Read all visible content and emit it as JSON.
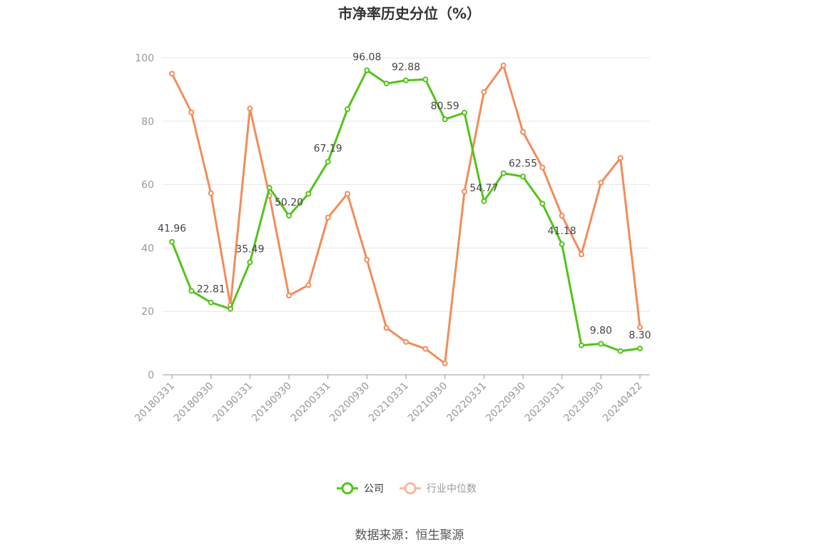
{
  "chart_data": {
    "type": "line",
    "title": "市净率历史分位（%）",
    "ylim": [
      0,
      100
    ],
    "yticks": [
      0,
      20,
      40,
      60,
      80,
      100
    ],
    "grid": true,
    "legend_position": "bottom",
    "x": [
      "20180331",
      "20180630",
      "20180930",
      "20181231",
      "20190331",
      "20190630",
      "20190930",
      "20191231",
      "20200331",
      "20200630",
      "20200930",
      "20201231",
      "20210331",
      "20210630",
      "20210930",
      "20211231",
      "20220331",
      "20220630",
      "20220930",
      "20221231",
      "20230331",
      "20230630",
      "20230930",
      "20231231",
      "20240422"
    ],
    "xtick_labels": [
      "20180331",
      "20180930",
      "20190331",
      "20190930",
      "20200331",
      "20200930",
      "20210331",
      "20210930",
      "20220331",
      "20220930",
      "20230331",
      "20230930",
      "20240422"
    ],
    "series": [
      {
        "name": "公司",
        "color": "#52c41a",
        "values": [
          41.96,
          26.5,
          22.81,
          20.8,
          35.49,
          59.0,
          50.2,
          57.1,
          67.19,
          83.8,
          96.08,
          91.9,
          92.88,
          93.2,
          80.59,
          82.7,
          54.77,
          63.6,
          62.55,
          54.0,
          41.18,
          9.3,
          9.8,
          7.5,
          8.3
        ],
        "labels": {
          "0": "41.96",
          "2": "22.81",
          "4": "35.49",
          "6": "50.20",
          "8": "67.19",
          "10": "96.08",
          "12": "92.88",
          "14": "80.59",
          "16": "54.77",
          "18": "62.55",
          "20": "41.18",
          "22": "9.80",
          "24": "8.30"
        }
      },
      {
        "name": "行业中位数",
        "color": "#f28c5a",
        "values": [
          95.0,
          82.8,
          57.3,
          21.9,
          84.0,
          56.5,
          25.0,
          28.3,
          49.6,
          57.1,
          36.3,
          14.8,
          10.4,
          8.2,
          3.6,
          57.8,
          89.2,
          97.6,
          76.6,
          65.4,
          50.2,
          38.0,
          60.6,
          68.4,
          15.0
        ]
      }
    ]
  },
  "legend": [
    {
      "label": "公司",
      "color": "#52c41a"
    },
    {
      "label": "行业中位数",
      "color": "#f7b8a0"
    }
  ],
  "source": "数据来源：恒生聚源"
}
